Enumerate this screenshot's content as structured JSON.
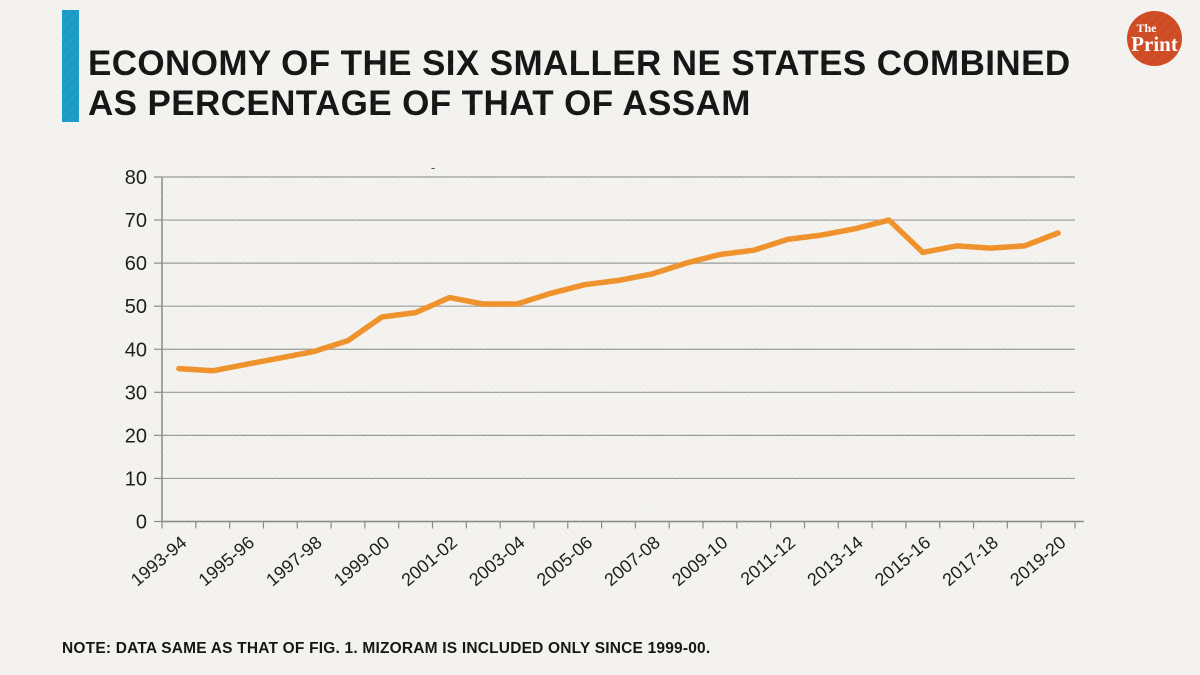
{
  "page": {
    "background_color": "#f4f3f0",
    "accent_bar_color": "#1a9cc7",
    "title_color": "#141414"
  },
  "header": {
    "title_line1": "ECONOMY OF THE SIX SMALLER NE STATES COMBINED",
    "title_line2": "AS PERCENTAGE OF THAT OF ASSAM"
  },
  "logo": {
    "text_top": "The",
    "text_bottom": "Print",
    "circle_color": "#cf4b23",
    "text_color": "#ffffff"
  },
  "note": "NOTE: DATA SAME AS THAT OF FIG. 1. MIZORAM IS INCLUDED ONLY SINCE 1999-00.",
  "chart_data": {
    "type": "line",
    "title": "-",
    "categories": [
      "1993-94",
      "1994-95",
      "1995-96",
      "1996-97",
      "1997-98",
      "1998-99",
      "1999-00",
      "2000-01",
      "2001-02",
      "2002-03",
      "2003-04",
      "2004-05",
      "2005-06",
      "2006-07",
      "2007-08",
      "2008-09",
      "2009-10",
      "2010-11",
      "2011-12",
      "2012-13",
      "2013-14",
      "2014-15",
      "2015-16",
      "2016-17",
      "2017-18",
      "2018-19",
      "2019-20"
    ],
    "values": [
      35.5,
      35,
      36.5,
      38,
      39.5,
      42,
      47.5,
      48.5,
      52,
      50.5,
      50.5,
      53,
      55,
      56,
      57.5,
      60,
      62,
      63,
      65.5,
      66.5,
      68,
      70,
      62.5,
      64,
      63.5,
      64,
      67
    ],
    "x_tick_labels": [
      "1993-94",
      "1995-96",
      "1997-98",
      "1999-00",
      "2001-02",
      "2003-04",
      "2005-06",
      "2007-08",
      "2009-10",
      "2011-12",
      "2013-14",
      "2015-16",
      "2017-18",
      "2019-20"
    ],
    "x_label_every": 2,
    "y_ticks": [
      0,
      10,
      20,
      30,
      40,
      50,
      60,
      70,
      80
    ],
    "ylim": [
      0,
      80
    ],
    "xlabel": "",
    "ylabel": "",
    "grid": true,
    "legend": "none",
    "line_color": "#f0922a",
    "gridline_color": "#9b9b9b",
    "axis_color": "#8a8a8a",
    "tick_label_color": "#1c1c1c"
  }
}
